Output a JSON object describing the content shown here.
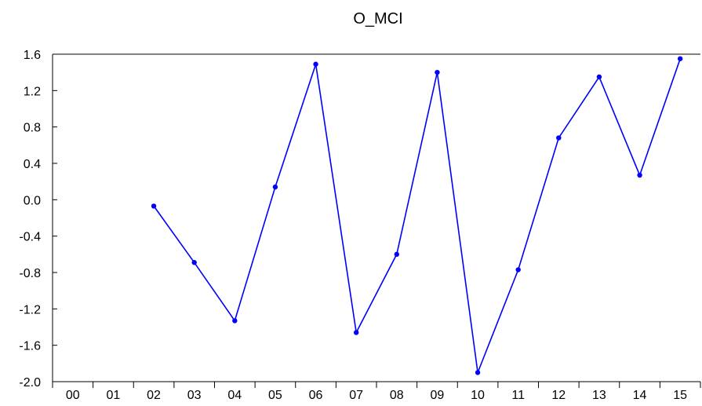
{
  "chart_data": {
    "type": "line",
    "title": "O_MCI",
    "xlabel": "",
    "ylabel": "",
    "categories": [
      "00",
      "01",
      "02",
      "03",
      "04",
      "05",
      "06",
      "07",
      "08",
      "09",
      "10",
      "11",
      "12",
      "13",
      "14",
      "15"
    ],
    "series": [
      {
        "values": [
          null,
          null,
          -0.07,
          -0.69,
          -1.33,
          0.14,
          1.49,
          -1.46,
          -0.6,
          1.4,
          -1.9,
          -0.77,
          0.68,
          1.35,
          0.27,
          1.55
        ],
        "color": "#0000ff",
        "markers": true
      }
    ],
    "ylim": [
      -2.0,
      1.6
    ],
    "yticks": [
      1.6,
      1.2,
      0.8,
      0.4,
      0.0,
      -0.4,
      -0.8,
      -1.2,
      -1.6,
      -2.0
    ],
    "ytick_labels": [
      "1.6",
      "1.2",
      "0.8",
      "0.4",
      "0.0",
      "-0.4",
      "-0.8",
      "-1.2",
      "-1.6",
      "-2.0"
    ],
    "grid": false,
    "legend": "none"
  }
}
